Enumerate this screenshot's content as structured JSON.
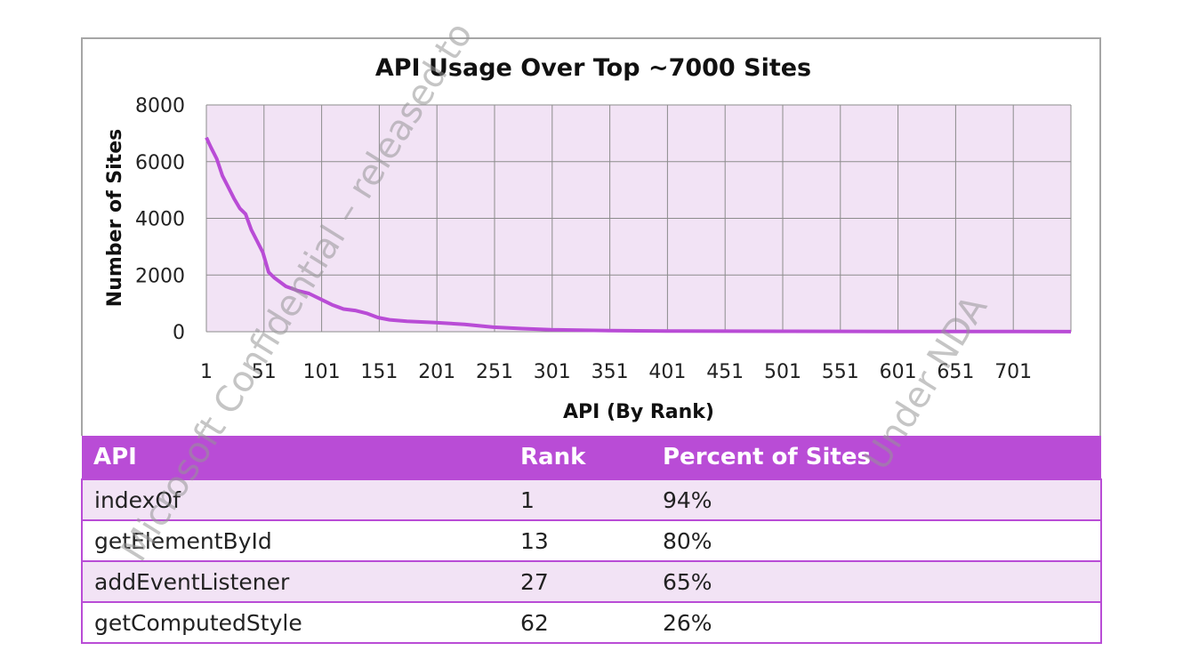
{
  "chart_data": {
    "type": "line",
    "title": "API Usage Over Top ~7000 Sites",
    "xlabel": "API (By Rank)",
    "ylabel": "Number of Sites",
    "x_ticks": [
      "1",
      "51",
      "101",
      "151",
      "201",
      "251",
      "301",
      "351",
      "401",
      "451",
      "501",
      "551",
      "601",
      "651",
      "701"
    ],
    "y_ticks": [
      "0",
      "2000",
      "4000",
      "6000",
      "8000"
    ],
    "xlim": [
      1,
      751
    ],
    "ylim": [
      0,
      8000
    ],
    "grid": true,
    "legend": "none",
    "series_color": "#b94cd6",
    "series": [
      {
        "x": [
          1,
          5,
          10,
          15,
          20,
          25,
          30,
          35,
          40,
          45,
          50,
          55,
          60,
          70,
          80,
          90,
          100,
          110,
          120,
          130,
          140,
          150,
          160,
          175,
          200,
          225,
          250,
          275,
          300,
          350,
          400,
          500,
          600,
          650,
          700,
          751
        ],
        "values": [
          6850,
          6500,
          6100,
          5500,
          5100,
          4700,
          4350,
          4150,
          3600,
          3200,
          2800,
          2100,
          1900,
          1600,
          1450,
          1350,
          1150,
          950,
          800,
          750,
          650,
          500,
          420,
          370,
          320,
          260,
          160,
          110,
          70,
          40,
          25,
          15,
          10,
          8,
          5,
          3
        ]
      }
    ]
  },
  "table": {
    "headers": [
      "API",
      "Rank",
      "Percent of Sites"
    ],
    "rows": [
      [
        "indexOf",
        "1",
        "94%"
      ],
      [
        "getElementById",
        "13",
        "80%"
      ],
      [
        "addEventListener",
        "27",
        "65%"
      ],
      [
        "getComputedStyle",
        "62",
        "26%"
      ]
    ]
  },
  "watermark": {
    "line1": "Microsoft Confidential – released to",
    "line2": "Under NDA"
  }
}
